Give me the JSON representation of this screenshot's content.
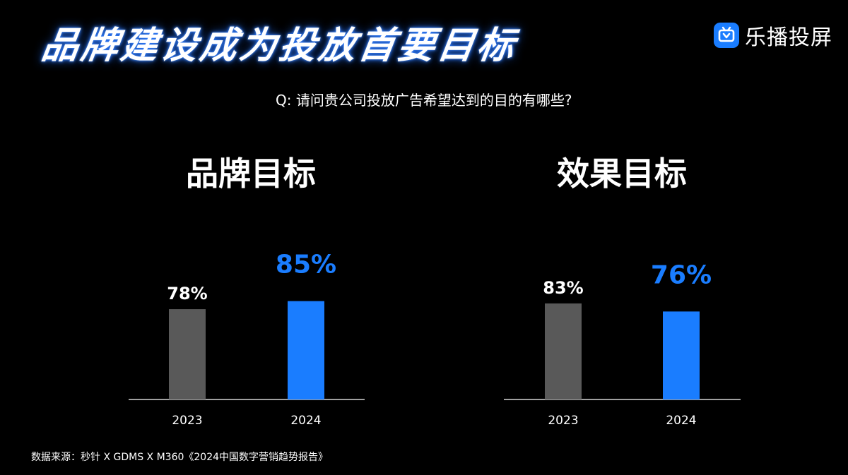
{
  "header": {
    "title": "品牌建设成为投放首要目标"
  },
  "brand": {
    "name": "乐播投屏",
    "icon": "tv-logo-icon",
    "color": "#1a7dff"
  },
  "question": "Q: 请问贵公司投放广告希望达到的目的有哪些?",
  "colors": {
    "prev_year": "#595959",
    "curr_year": "#1a7dff",
    "axis": "#ffffff"
  },
  "chart_data": [
    {
      "type": "bar",
      "title": "品牌目标",
      "categories": [
        "2023",
        "2024"
      ],
      "values": [
        78,
        85
      ],
      "value_labels": [
        "78%",
        "85%"
      ],
      "bar_colors": [
        "#595959",
        "#1a7dff"
      ],
      "ylim": [
        0,
        100
      ],
      "grid": false,
      "legend": "none"
    },
    {
      "type": "bar",
      "title": "效果目标",
      "categories": [
        "2023",
        "2024"
      ],
      "values": [
        83,
        76
      ],
      "value_labels": [
        "83%",
        "76%"
      ],
      "bar_colors": [
        "#595959",
        "#1a7dff"
      ],
      "ylim": [
        0,
        100
      ],
      "grid": false,
      "legend": "none"
    }
  ],
  "footer": {
    "source": "数据来源：秒针 X GDMS X M360《2024中国数字营销趋势报告》"
  }
}
